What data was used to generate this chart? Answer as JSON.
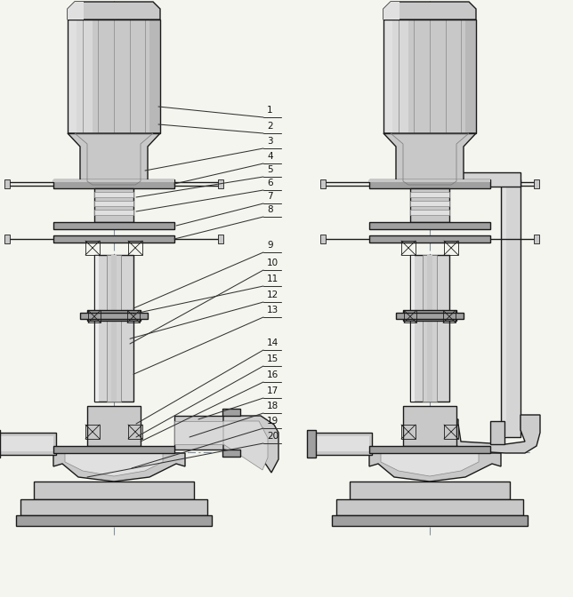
{
  "bg_color": "#f5f5f0",
  "line_color": "#1a1a1a",
  "clr_light": "#e0e0e0",
  "clr_mid": "#c8c8c8",
  "clr_dark": "#a0a0a0",
  "clr_shadow": "#888888",
  "clr_pipe": "#d4d4d4",
  "clr_fill_elbow": "#cccccc",
  "center_line_color": "#8090a0",
  "callout_color": "#222222",
  "numbers": [
    "1",
    "2",
    "3",
    "4",
    "5",
    "6",
    "7",
    "8",
    "9",
    "10",
    "11",
    "12",
    "13",
    "14",
    "15",
    "16",
    "17",
    "18",
    "19",
    "20"
  ]
}
